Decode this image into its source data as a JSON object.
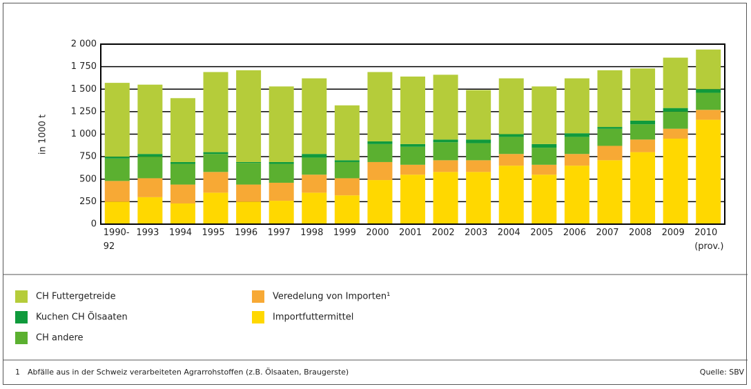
{
  "chart_data": {
    "type": "stacked_bar",
    "y_label": "in 1000 t",
    "categories": [
      "1990-92",
      "1993",
      "1994",
      "1995",
      "1996",
      "1997",
      "1998",
      "1999",
      "2000",
      "2001",
      "2002",
      "2003",
      "2004",
      "2005",
      "2006",
      "2007",
      "2008",
      "2009",
      "2010 (prov.)"
    ],
    "series": [
      {
        "name": "CH Futtergetreide",
        "color": "#b5cc3a",
        "values": [
          820,
          770,
          710,
          890,
          1020,
          840,
          840,
          610,
          770,
          750,
          720,
          550,
          620,
          640,
          610,
          630,
          580,
          560,
          440
        ]
      },
      {
        "name": "Kuchen CH Ölsaaten",
        "color": "#0f9a3c",
        "values": [
          20,
          30,
          20,
          20,
          10,
          20,
          40,
          20,
          30,
          30,
          30,
          40,
          30,
          40,
          40,
          20,
          40,
          40,
          40
        ]
      },
      {
        "name": "CH andere",
        "color": "#5bb030",
        "values": [
          250,
          240,
          230,
          200,
          240,
          210,
          190,
          180,
          200,
          200,
          200,
          190,
          190,
          190,
          190,
          190,
          170,
          190,
          190
        ]
      },
      {
        "name": "Veredelung von Importen¹",
        "color": "#f7a935",
        "values": [
          230,
          210,
          210,
          230,
          190,
          200,
          200,
          190,
          200,
          110,
          130,
          130,
          130,
          110,
          130,
          160,
          140,
          110,
          110
        ]
      },
      {
        "name": "Importfuttermittel",
        "color": "#ffd800",
        "values": [
          250,
          300,
          230,
          350,
          250,
          260,
          350,
          320,
          490,
          550,
          580,
          580,
          650,
          550,
          650,
          710,
          800,
          950,
          1160
        ]
      }
    ],
    "ylim": [
      0,
      2000
    ],
    "yticks": [
      0,
      250,
      500,
      750,
      {
        "value": 1000,
        "label": "1 000"
      },
      {
        "value": 1250,
        "label": "1 250"
      },
      {
        "value": 1500,
        "label": "1 500"
      },
      {
        "value": 1750,
        "label": "1 750"
      },
      {
        "value": 2000,
        "label": "2 000"
      }
    ],
    "grid": true,
    "footnote_marker": "1",
    "footnote": "Abfälle aus in der Schweiz verarbeiteten Agrarrohstoffen (z.B. Ölsaaten, Braugerste)",
    "source": "Quelle: SBV"
  }
}
